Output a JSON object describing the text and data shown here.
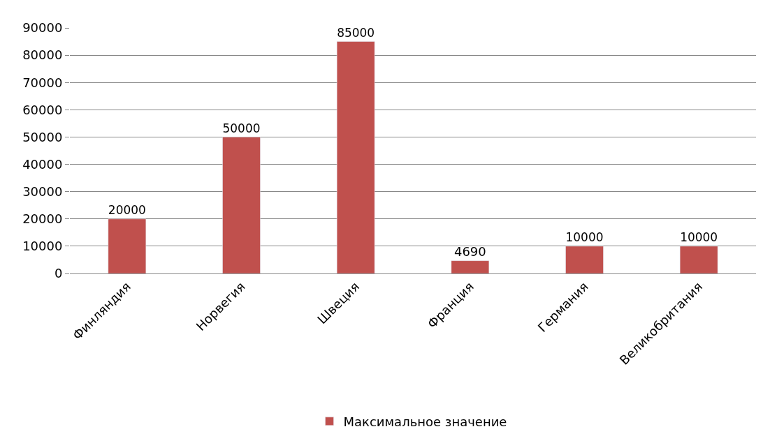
{
  "chart_data": {
    "type": "bar",
    "categories": [
      "Финляндия",
      "Норвегия",
      "Швеция",
      "Франция",
      "Германия",
      "Великобритания"
    ],
    "series": [
      {
        "name": "Максимальное значение",
        "color": "#c0504d",
        "values": [
          20000,
          50000,
          85000,
          4690,
          10000,
          10000
        ]
      }
    ],
    "ylim": [
      0,
      90000
    ],
    "yticks": [
      0,
      10000,
      20000,
      30000,
      40000,
      50000,
      60000,
      70000,
      80000,
      90000
    ],
    "grid": "y",
    "legend": "bottom",
    "data_labels": true
  }
}
